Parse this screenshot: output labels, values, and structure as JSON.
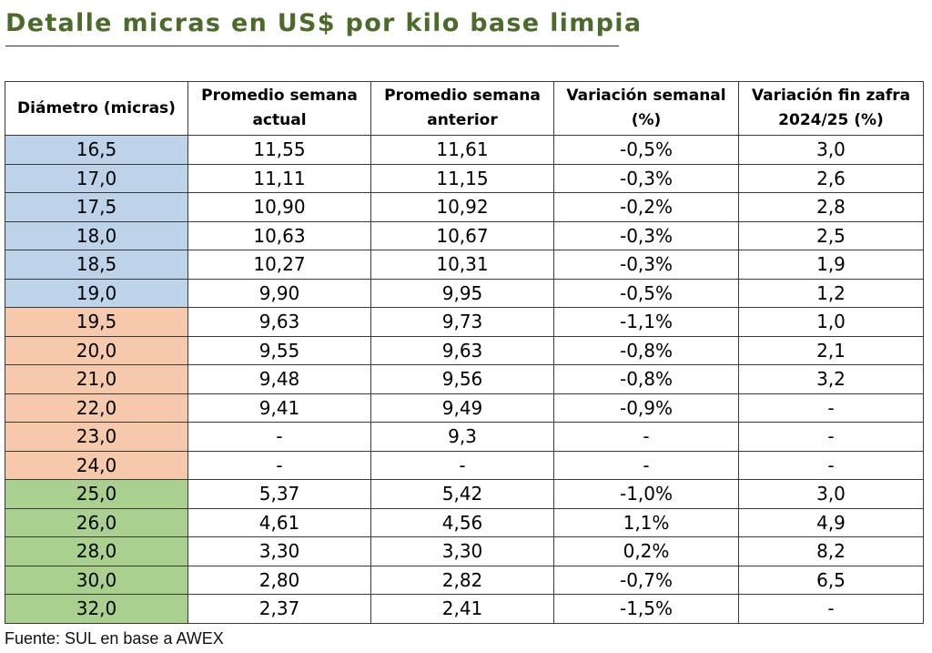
{
  "title": "Detalle micras en US$ por kilo base limpia",
  "headers": [
    {
      "line1": "Diámetro (micras)",
      "line2": ""
    },
    {
      "line1": "Promedio semana",
      "line2": "actual"
    },
    {
      "line1": "Promedio semana",
      "line2": "anterior"
    },
    {
      "line1": "Variación semanal",
      "line2": "(%)"
    },
    {
      "line1": "Variación fin zafra",
      "line2": "2024/25 (%)"
    }
  ],
  "group_colors": {
    "blue": "#bcd3ea",
    "orange": "#f6c9ad",
    "green": "#a9d08e"
  },
  "rows": [
    {
      "group": "blue",
      "cells": [
        "16,5",
        "11,55",
        "11,61",
        "-0,5%",
        "3,0"
      ]
    },
    {
      "group": "blue",
      "cells": [
        "17,0",
        "11,11",
        "11,15",
        "-0,3%",
        "2,6"
      ]
    },
    {
      "group": "blue",
      "cells": [
        "17,5",
        "10,90",
        "10,92",
        "-0,2%",
        "2,8"
      ]
    },
    {
      "group": "blue",
      "cells": [
        "18,0",
        "10,63",
        "10,67",
        "-0,3%",
        "2,5"
      ]
    },
    {
      "group": "blue",
      "cells": [
        "18,5",
        "10,27",
        "10,31",
        "-0,3%",
        "1,9"
      ]
    },
    {
      "group": "blue",
      "cells": [
        "19,0",
        "9,90",
        "9,95",
        "-0,5%",
        "1,2"
      ]
    },
    {
      "group": "orange",
      "cells": [
        "19,5",
        "9,63",
        "9,73",
        "-1,1%",
        "1,0"
      ]
    },
    {
      "group": "orange",
      "cells": [
        "20,0",
        "9,55",
        "9,63",
        "-0,8%",
        "2,1"
      ]
    },
    {
      "group": "orange",
      "cells": [
        "21,0",
        "9,48",
        "9,56",
        "-0,8%",
        "3,2"
      ]
    },
    {
      "group": "orange",
      "cells": [
        "22,0",
        "9,41",
        "9,49",
        "-0,9%",
        "-"
      ]
    },
    {
      "group": "orange",
      "cells": [
        "23,0",
        "-",
        "9,3",
        "-",
        "-"
      ]
    },
    {
      "group": "orange",
      "cells": [
        "24,0",
        "-",
        "-",
        "-",
        "-"
      ]
    },
    {
      "group": "green",
      "cells": [
        "25,0",
        "5,37",
        "5,42",
        "-1,0%",
        "3,0"
      ]
    },
    {
      "group": "green",
      "cells": [
        "26,0",
        "4,61",
        "4,56",
        "1,1%",
        "4,9"
      ]
    },
    {
      "group": "green",
      "cells": [
        "28,0",
        "3,30",
        "3,30",
        "0,2%",
        "8,2"
      ]
    },
    {
      "group": "green",
      "cells": [
        "30,0",
        "2,80",
        "2,82",
        "-0,7%",
        "6,5"
      ]
    },
    {
      "group": "green",
      "cells": [
        "32,0",
        "2,37",
        "2,41",
        "-1,5%",
        "-"
      ]
    }
  ],
  "source": "Fuente: SUL en base a AWEX"
}
